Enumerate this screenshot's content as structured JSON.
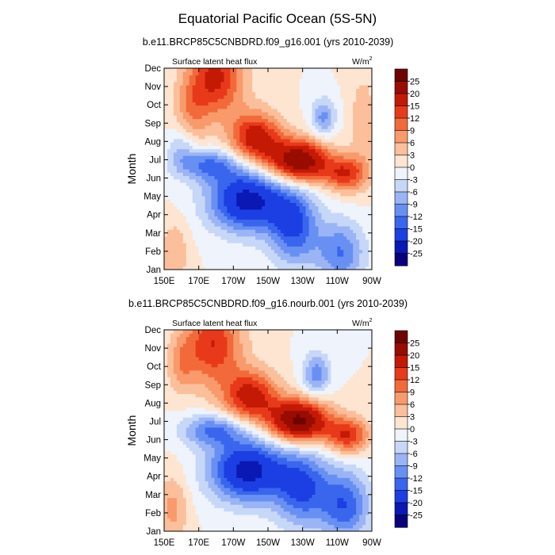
{
  "title": "Equatorial Pacific Ocean (5S-5N)",
  "chart_data": [
    {
      "type": "heatmap",
      "title": "b.e11.BRCP85C5CNBDRD.f09_g16.001 (yrs 2010-2039)",
      "subtitle_left": "Surface latent heat flux",
      "units": "W/m",
      "units_sup": "2",
      "ylabel": "Month",
      "xlabel": "",
      "x_ticks": [
        "150E",
        "170E",
        "170W",
        "150W",
        "130W",
        "110W",
        "90W"
      ],
      "y_ticks": [
        "Jan",
        "Feb",
        "Mar",
        "Apr",
        "May",
        "Jun",
        "Jul",
        "Aug",
        "Sep",
        "Oct",
        "Nov",
        "Dec"
      ],
      "xlim": [
        150,
        270
      ],
      "levels": [
        -25,
        -20,
        -15,
        -12,
        -9,
        -6,
        -3,
        0,
        3,
        6,
        9,
        12,
        15,
        20,
        25
      ],
      "field": {
        "positive": [
          {
            "lon": 180,
            "month": 11.5,
            "amp": 16,
            "wlon": 16,
            "wmon": 2.2
          },
          {
            "lon": 166,
            "month": 9.5,
            "amp": 7,
            "wlon": 10,
            "wmon": 2.0
          },
          {
            "lon": 203,
            "month": 8.0,
            "amp": 18,
            "wlon": 15,
            "wmon": 1.5
          },
          {
            "lon": 228,
            "month": 6.7,
            "amp": 26,
            "wlon": 17,
            "wmon": 1.2
          },
          {
            "lon": 255,
            "month": 6.0,
            "amp": 14,
            "wlon": 12,
            "wmon": 1.0
          },
          {
            "lon": 156,
            "month": 1.5,
            "amp": 6,
            "wlon": 8,
            "wmon": 1.8
          },
          {
            "lon": 265,
            "month": 9.0,
            "amp": 5,
            "wlon": 8,
            "wmon": 3.0
          }
        ],
        "negative": [
          {
            "lon": 198,
            "month": 4.5,
            "amp": -22,
            "wlon": 22,
            "wmon": 1.8
          },
          {
            "lon": 175,
            "month": 6.5,
            "amp": -12,
            "wlon": 18,
            "wmon": 0.9
          },
          {
            "lon": 225,
            "month": 3.0,
            "amp": -15,
            "wlon": 14,
            "wmon": 2.2
          },
          {
            "lon": 252,
            "month": 1.5,
            "amp": -12,
            "wlon": 14,
            "wmon": 1.8
          },
          {
            "lon": 242,
            "month": 9.2,
            "amp": -10,
            "wlon": 7,
            "wmon": 1.1
          },
          {
            "lon": 160,
            "month": 7.5,
            "amp": -6,
            "wlon": 8,
            "wmon": 1.2
          }
        ]
      }
    },
    {
      "type": "heatmap",
      "title": "b.e11.BRCP85C5CNBDRD.f09_g16.nourb.001 (yrs 2010-2039)",
      "subtitle_left": "Surface latent heat flux",
      "units": "W/m",
      "units_sup": "2",
      "ylabel": "Month",
      "xlabel": "",
      "x_ticks": [
        "150E",
        "170E",
        "170W",
        "150W",
        "130W",
        "110W",
        "90W"
      ],
      "y_ticks": [
        "Jan",
        "Feb",
        "Mar",
        "Apr",
        "May",
        "Jun",
        "Jul",
        "Aug",
        "Sep",
        "Oct",
        "Nov",
        "Dec"
      ],
      "xlim": [
        150,
        270
      ],
      "levels": [
        -25,
        -20,
        -15,
        -12,
        -9,
        -6,
        -3,
        0,
        3,
        6,
        9,
        12,
        15,
        20,
        25
      ],
      "field": {
        "positive": [
          {
            "lon": 178,
            "month": 11.2,
            "amp": 15,
            "wlon": 17,
            "wmon": 2.3
          },
          {
            "lon": 200,
            "month": 8.2,
            "amp": 17,
            "wlon": 16,
            "wmon": 1.5
          },
          {
            "lon": 228,
            "month": 6.8,
            "amp": 27,
            "wlon": 17,
            "wmon": 1.2
          },
          {
            "lon": 256,
            "month": 6.0,
            "amp": 15,
            "wlon": 12,
            "wmon": 1.0
          },
          {
            "lon": 155,
            "month": 1.8,
            "amp": 7,
            "wlon": 9,
            "wmon": 2.0
          },
          {
            "lon": 160,
            "month": 10.0,
            "amp": 6,
            "wlon": 8,
            "wmon": 1.6
          }
        ],
        "negative": [
          {
            "lon": 198,
            "month": 4.0,
            "amp": -22,
            "wlon": 22,
            "wmon": 1.8
          },
          {
            "lon": 178,
            "month": 6.3,
            "amp": -12,
            "wlon": 18,
            "wmon": 0.9
          },
          {
            "lon": 230,
            "month": 3.0,
            "amp": -15,
            "wlon": 16,
            "wmon": 2.2
          },
          {
            "lon": 255,
            "month": 2.0,
            "amp": -14,
            "wlon": 14,
            "wmon": 2.0
          },
          {
            "lon": 238,
            "month": 9.5,
            "amp": -11,
            "wlon": 8,
            "wmon": 1.2
          }
        ]
      }
    }
  ],
  "colorbar": {
    "labels": [
      "25",
      "20",
      "15",
      "12",
      "9",
      "6",
      "3",
      "0",
      "-3",
      "-6",
      "-9",
      "-12",
      "-15",
      "-20",
      "-25"
    ],
    "colors": [
      "#08007d",
      "#0a18b4",
      "#1c3fe3",
      "#3a66ee",
      "#6890f3",
      "#9ab4f5",
      "#c7d7f8",
      "#eef3fc",
      "#fde5d2",
      "#fbbf9b",
      "#f89a6b",
      "#f26a3a",
      "#e8391a",
      "#c41a05",
      "#990c00",
      "#6e0400"
    ]
  }
}
